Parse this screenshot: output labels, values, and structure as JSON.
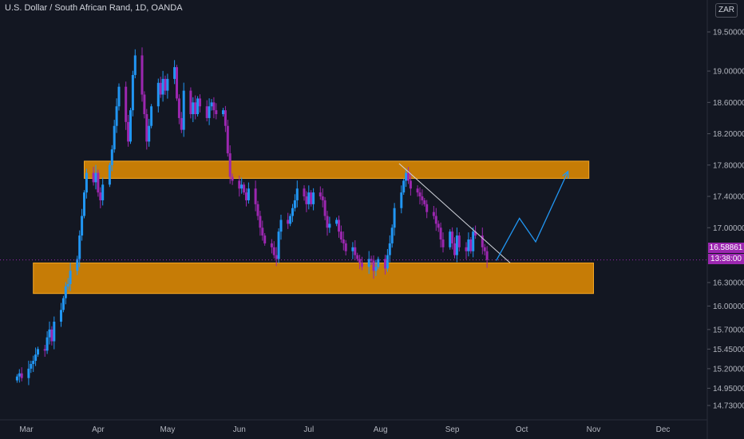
{
  "header": {
    "title": "U.S. Dollar / South African Rand, 1D, OANDA",
    "currency": "ZAR"
  },
  "price_scale": {
    "last_price": "16.58861",
    "countdown": "13:38:00"
  },
  "colors": {
    "background": "#131722",
    "up_candle": "#2196f3",
    "down_candle": "#9c27b0",
    "zone_fill": "#c67c06",
    "zone_border": "#f5a623",
    "trendline": "#d1d4dc",
    "projection": "#2196f3",
    "axis_text": "#b2b5be"
  },
  "chart_data": {
    "type": "candlestick",
    "title": "U.S. Dollar / South African Rand, 1D, OANDA",
    "x_ticks": [
      "Mar",
      "Apr",
      "May",
      "Jun",
      "Jul",
      "Aug",
      "Sep",
      "Oct",
      "Nov",
      "Dec"
    ],
    "y_ticks": [
      19.5,
      19.0,
      18.6,
      18.2,
      17.8,
      17.4,
      17.0,
      16.3,
      16.0,
      15.7,
      15.45,
      15.2,
      14.95,
      14.73
    ],
    "y_tick_labels": [
      "19.50000",
      "19.00000",
      "18.60000",
      "18.20000",
      "17.80000",
      "17.40000",
      "17.00000",
      "16.30000",
      "16.00000",
      "15.70000",
      "15.45000",
      "15.20000",
      "14.95000",
      "14.73000"
    ],
    "ylim": [
      14.63,
      19.7
    ],
    "grid": false,
    "last_price": 16.58861,
    "start_date": "2020-02-26",
    "closes": [
      15.1,
      15.14,
      15.08,
      15.2,
      15.26,
      15.3,
      15.38,
      15.45,
      15.43,
      15.6,
      15.7,
      15.55,
      15.8,
      15.95,
      16.1,
      16.25,
      16.28,
      16.45,
      16.6,
      16.9,
      17.15,
      17.45,
      17.7,
      17.58,
      17.7,
      17.45,
      17.35,
      17.55,
      17.8,
      18.0,
      18.3,
      18.55,
      18.8,
      18.35,
      18.1,
      18.5,
      18.95,
      19.2,
      18.7,
      18.45,
      18.1,
      18.3,
      18.55,
      18.85,
      18.7,
      18.9,
      18.75,
      18.9,
      19.05,
      18.65,
      18.4,
      18.25,
      18.75,
      18.45,
      18.6,
      18.45,
      18.65,
      18.55,
      18.4,
      18.55,
      18.6,
      18.5,
      18.45,
      18.5,
      18.3,
      17.95,
      17.65,
      17.6,
      17.5,
      17.55,
      17.45,
      17.35,
      17.5,
      17.3,
      17.15,
      17.0,
      16.9,
      16.8,
      16.75,
      16.65,
      16.6,
      16.95,
      17.1,
      17.05,
      17.15,
      17.25,
      17.35,
      17.5,
      17.4,
      17.3,
      17.45,
      17.3,
      17.45,
      17.4,
      17.35,
      17.15,
      17.0,
      17.05,
      17.1,
      16.95,
      16.85,
      16.8,
      16.7,
      16.75,
      16.65,
      16.6,
      16.55,
      16.5,
      16.6,
      16.58,
      16.45,
      16.5,
      16.6,
      16.48,
      16.65,
      16.8,
      17.0,
      17.25,
      17.45,
      17.6,
      17.7,
      17.6,
      17.5,
      17.45,
      17.4,
      17.35,
      17.3,
      17.2,
      17.15,
      17.05,
      17.0,
      16.85,
      16.75,
      16.95,
      16.8,
      16.65,
      16.9,
      16.75,
      16.7,
      16.85,
      16.7,
      16.95,
      16.9,
      16.75,
      16.7,
      16.58861
    ],
    "zones": [
      {
        "top": 17.85,
        "bottom": 17.63,
        "from": "2020-03-26",
        "to": "2020-10-30"
      },
      {
        "top": 16.55,
        "bottom": 16.16,
        "from": "2020-03-04",
        "to": "2020-11-01"
      }
    ],
    "trendline": [
      {
        "date": "2020-08-09",
        "price": 17.82
      },
      {
        "date": "2020-09-26",
        "price": 16.55
      }
    ],
    "projection": [
      {
        "date": "2020-09-20",
        "price": 16.58
      },
      {
        "date": "2020-09-30",
        "price": 17.12
      },
      {
        "date": "2020-10-07",
        "price": 16.82
      },
      {
        "date": "2020-10-21",
        "price": 17.72
      }
    ]
  }
}
